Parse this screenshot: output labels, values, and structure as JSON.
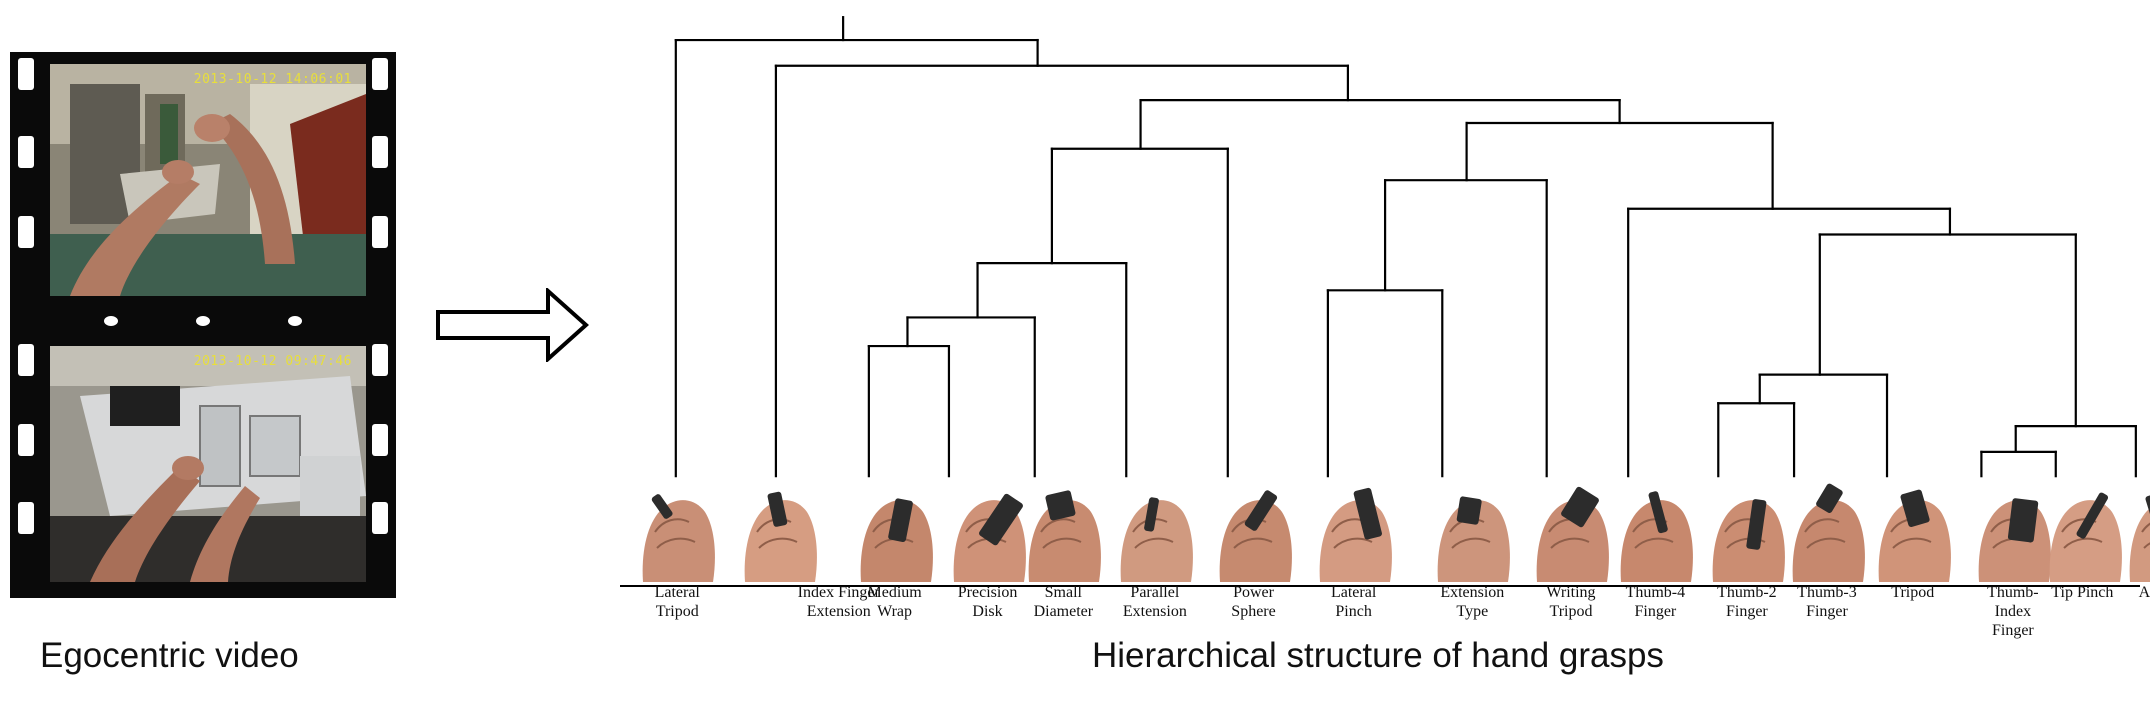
{
  "left_panel": {
    "frame_timestamps": [
      "2013-10-12 14:06:01",
      "2013-10-12 09:47:46"
    ],
    "caption": "Egocentric video"
  },
  "right_panel": {
    "caption": "Hierarchical structure of hand grasps",
    "grasps": [
      {
        "label": "Lateral\nTripod",
        "skin": "#c98f76"
      },
      {
        "label": "Index Finger\nExtension",
        "skin": "#d69d82"
      },
      {
        "label": "Medium\nWrap",
        "skin": "#c4876c"
      },
      {
        "label": "Precision\nDisk",
        "skin": "#cf9278"
      },
      {
        "label": "Small\nDiameter",
        "skin": "#c88b70"
      },
      {
        "label": "Parallel\nExtension",
        "skin": "#d09a80"
      },
      {
        "label": "Power\nSphere",
        "skin": "#c68a6f"
      },
      {
        "label": "Lateral\nPinch",
        "skin": "#d49b82"
      },
      {
        "label": "Extension\nType",
        "skin": "#cd957c"
      },
      {
        "label": "Writing\nTripod",
        "skin": "#c88b72"
      },
      {
        "label": "Thumb-4\nFinger",
        "skin": "#c7886d"
      },
      {
        "label": "Thumb-2\nFinger",
        "skin": "#cb8d72"
      },
      {
        "label": "Thumb-3\nFinger",
        "skin": "#c6886e"
      },
      {
        "label": "Tripod",
        "skin": "#d09479"
      },
      {
        "label": "Thumb-\nIndex\nFinger",
        "skin": "#cc9178"
      },
      {
        "label": "Tip Pinch",
        "skin": "#d59d84"
      },
      {
        "label": "Adduction",
        "skin": "#d29a80"
      }
    ]
  }
}
